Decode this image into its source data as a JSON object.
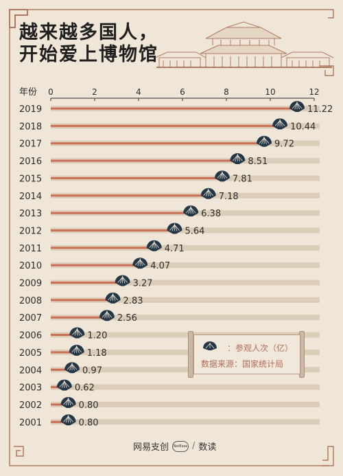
{
  "header": {
    "title_line_1": "越来越多国人，",
    "title_line_2": "开始爱上博物馆"
  },
  "chart_data": {
    "type": "bar",
    "orientation": "horizontal",
    "y_axis_label": "年份",
    "xlim": [
      0,
      12
    ],
    "x_ticks": [
      "0",
      "2",
      "4",
      "6",
      "8",
      "10",
      "12"
    ],
    "categories": [
      "2019",
      "2018",
      "2017",
      "2016",
      "2015",
      "2014",
      "2013",
      "2012",
      "2011",
      "2010",
      "2009",
      "2008",
      "2007",
      "2006",
      "2005",
      "2004",
      "2003",
      "2002",
      "2001"
    ],
    "series": [
      {
        "name": "参观人次（亿）",
        "values": [
          11.22,
          10.44,
          9.72,
          8.51,
          7.81,
          7.18,
          6.38,
          5.64,
          4.71,
          4.07,
          3.27,
          2.83,
          2.56,
          1.2,
          1.18,
          0.97,
          0.62,
          0.8,
          0.8
        ],
        "labels": [
          "11.22",
          "10.44",
          "9.72",
          "8.51",
          "7.81",
          "7.18",
          "6.38",
          "5.64",
          "4.71",
          "4.07",
          "3.27",
          "2.83",
          "2.56",
          "1.20",
          "1.18",
          "0.97",
          "0.62",
          "0.80",
          "0.80"
        ]
      }
    ],
    "legend_position": "bottom-right"
  },
  "legend": {
    "series_label": "：参观人次（亿）",
    "source_label": "数据来源：国家统计局"
  },
  "footer": {
    "brand": "网易支创",
    "badge": "NetEase",
    "section": "数读"
  },
  "colors": {
    "background": "#efe6d8",
    "track": "#dccdb8",
    "bar": "#c96f55",
    "marker": "#243746",
    "frame": "#b0785f"
  }
}
